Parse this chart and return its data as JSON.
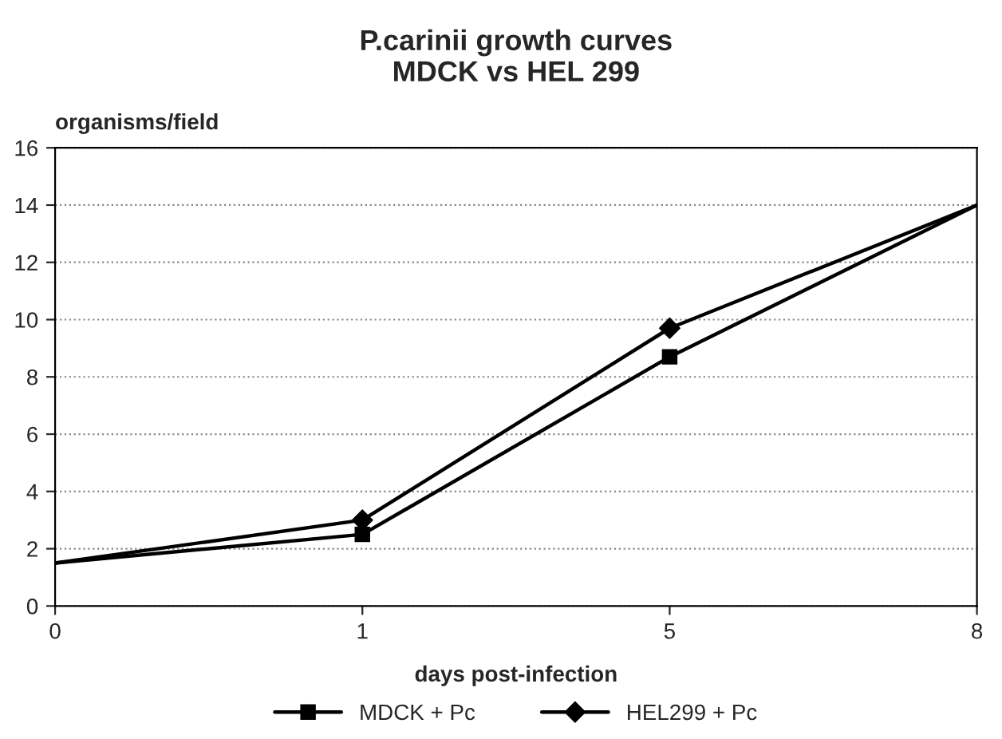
{
  "chart_data": {
    "type": "line",
    "title": "P.carinii growth curves\nMDCK vs HEL 299",
    "xlabel": "days post-infection",
    "ylabel": "organisms/field",
    "categories": [
      "0",
      "1",
      "5",
      "8"
    ],
    "series": [
      {
        "name": "MDCK + Pc",
        "color": "#000000",
        "marker": "square",
        "values": [
          1.5,
          2.5,
          8.7,
          14
        ]
      },
      {
        "name": "HEL299 + Pc",
        "color": "#000000",
        "marker": "diamond",
        "values": [
          1.5,
          3.0,
          9.7,
          14
        ]
      }
    ],
    "ylim": [
      0,
      16
    ],
    "yticks": [
      0,
      2,
      4,
      6,
      8,
      10,
      12,
      14,
      16
    ],
    "grid": "y",
    "legend": "bottom",
    "line_style": "solid"
  }
}
